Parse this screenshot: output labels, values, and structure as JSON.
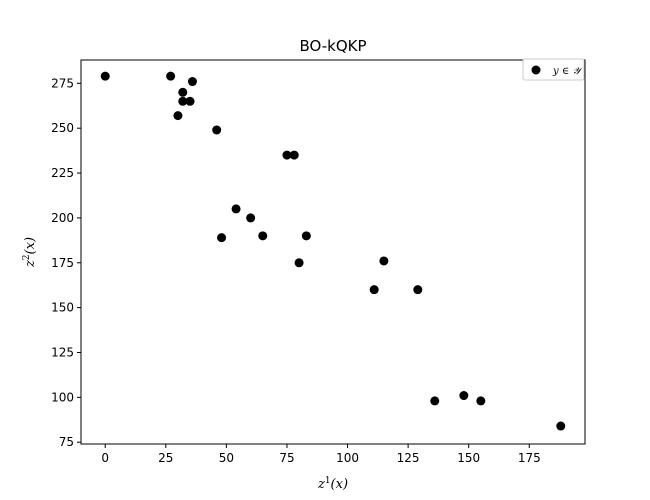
{
  "chart_data": {
    "type": "scatter",
    "title": "BO-kQKP",
    "xlabel": {
      "base": "z",
      "sup": "1",
      "suffix": "(x)"
    },
    "ylabel": {
      "base": "z",
      "sup": "2",
      "suffix": "(x)"
    },
    "xlim": [
      -10,
      198
    ],
    "ylim": [
      74,
      288
    ],
    "xticks": [
      0,
      25,
      50,
      75,
      100,
      125,
      150,
      175
    ],
    "yticks": [
      75,
      100,
      125,
      150,
      175,
      200,
      225,
      250,
      275
    ],
    "grid": false,
    "legend": {
      "placement": "top-right",
      "label": "y ∈ 𝒴"
    },
    "series": [
      {
        "name": "y ∈ 𝒴",
        "color": "#000000",
        "points": [
          [
            0,
            279
          ],
          [
            27,
            279
          ],
          [
            32,
            270
          ],
          [
            32,
            265
          ],
          [
            35,
            265
          ],
          [
            36,
            276
          ],
          [
            30,
            257
          ],
          [
            46,
            249
          ],
          [
            75,
            235
          ],
          [
            78,
            235
          ],
          [
            54,
            205
          ],
          [
            60,
            200
          ],
          [
            48,
            189
          ],
          [
            65,
            190
          ],
          [
            83,
            190
          ],
          [
            80,
            175
          ],
          [
            115,
            176
          ],
          [
            111,
            160
          ],
          [
            129,
            160
          ],
          [
            136,
            98
          ],
          [
            148,
            101
          ],
          [
            155,
            98
          ],
          [
            188,
            84
          ]
        ]
      }
    ]
  }
}
